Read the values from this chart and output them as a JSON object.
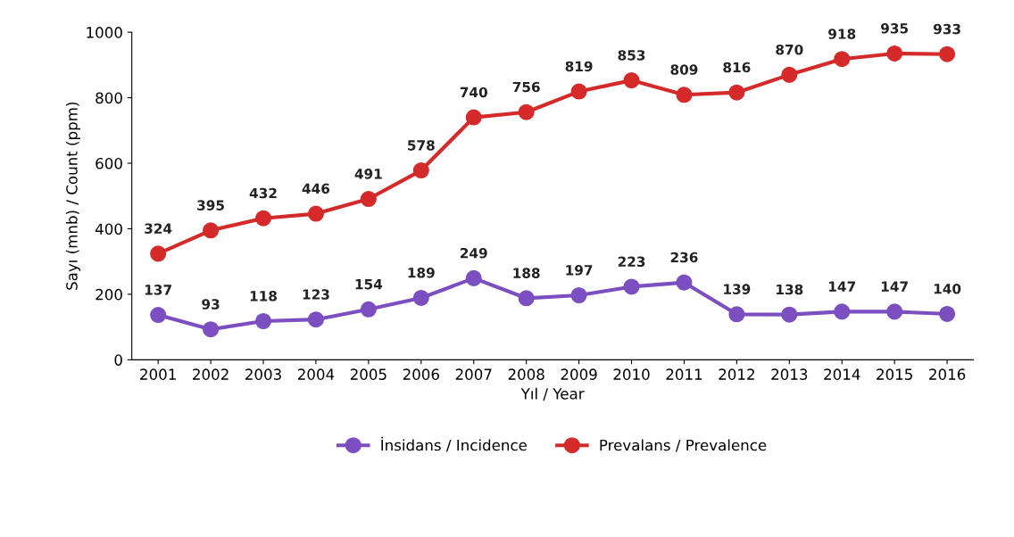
{
  "chart_data": {
    "type": "line",
    "xlabel": "Yıl / Year",
    "ylabel": "Sayı (mnb) / Count (ppm)",
    "categories": [
      "2001",
      "2002",
      "2003",
      "2004",
      "2005",
      "2006",
      "2007",
      "2008",
      "2009",
      "2010",
      "2011",
      "2012",
      "2013",
      "2014",
      "2015",
      "2016"
    ],
    "series": [
      {
        "name": "İnsidans / Incidence",
        "color": "#7b4fc0",
        "values": [
          137,
          93,
          118,
          123,
          154,
          189,
          249,
          188,
          197,
          223,
          236,
          139,
          138,
          147,
          147,
          140
        ]
      },
      {
        "name": "Prevalans / Prevalence",
        "color": "#d42a2a",
        "values": [
          324,
          395,
          432,
          446,
          491,
          578,
          740,
          756,
          819,
          853,
          809,
          816,
          870,
          918,
          935,
          933
        ]
      }
    ],
    "ylim": [
      0,
      1000
    ],
    "yticks": [
      0,
      200,
      400,
      600,
      800,
      1000
    ],
    "grid": false,
    "legend": "bottom",
    "marker": "circle",
    "line_style": "solid",
    "data_labels": true
  }
}
